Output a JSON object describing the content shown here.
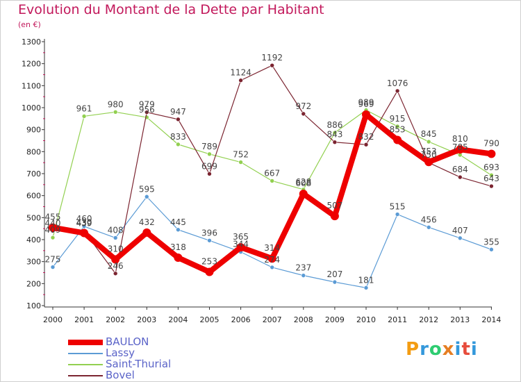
{
  "title": "Evolution du Montant de la Dette par Habitant",
  "subtitle": "(en €)",
  "logo": {
    "text": "Proxiti",
    "letters": [
      "P",
      "r",
      "o",
      "x",
      "i",
      "t",
      "i"
    ],
    "colors": [
      "#f39c12",
      "#3498db",
      "#2ecc71",
      "#e67e22",
      "#3498db",
      "#e74c3c",
      "#3498db"
    ]
  },
  "chart_data": {
    "type": "line",
    "title": "Evolution du Montant de la Dette par Habitant",
    "subtitle": "(en €)",
    "xlabel": "",
    "ylabel": "",
    "categories": [
      "2000",
      "2001",
      "2002",
      "2003",
      "2004",
      "2005",
      "2006",
      "2007",
      "2008",
      "2009",
      "2010",
      "2011",
      "2012",
      "2013",
      "2014"
    ],
    "ylim": [
      100,
      1300
    ],
    "yticks": [
      100,
      200,
      300,
      400,
      500,
      600,
      700,
      800,
      900,
      1000,
      1100,
      1200,
      1300
    ],
    "grid": false,
    "legend_position": "bottom-left",
    "series": [
      {
        "name": "BAULON",
        "color": "#ee0000",
        "width": 8,
        "marker": 6,
        "values": [
          455,
          430,
          310,
          432,
          318,
          253,
          365,
          314,
          608,
          507,
          969,
          853,
          753,
          810,
          790
        ]
      },
      {
        "name": "Lassy",
        "color": "#5b9bd5",
        "width": 1.2,
        "marker": 3,
        "values": [
          275,
          460,
          408,
          595,
          445,
          396,
          344,
          274,
          237,
          207,
          181,
          515,
          456,
          407,
          355
        ]
      },
      {
        "name": "Saint-Thurial",
        "color": "#92d050",
        "width": 1.2,
        "marker": 3,
        "values": [
          409,
          961,
          980,
          956,
          833,
          789,
          752,
          667,
          628,
          886,
          989,
          915,
          845,
          785,
          693
        ]
      },
      {
        "name": "Bovel",
        "color": "#7b2430",
        "width": 1.2,
        "marker": 3,
        "values": [
          440,
          439,
          246,
          979,
          947,
          699,
          1124,
          1192,
          972,
          843,
          832,
          1076,
          750,
          684,
          643
        ]
      }
    ]
  }
}
